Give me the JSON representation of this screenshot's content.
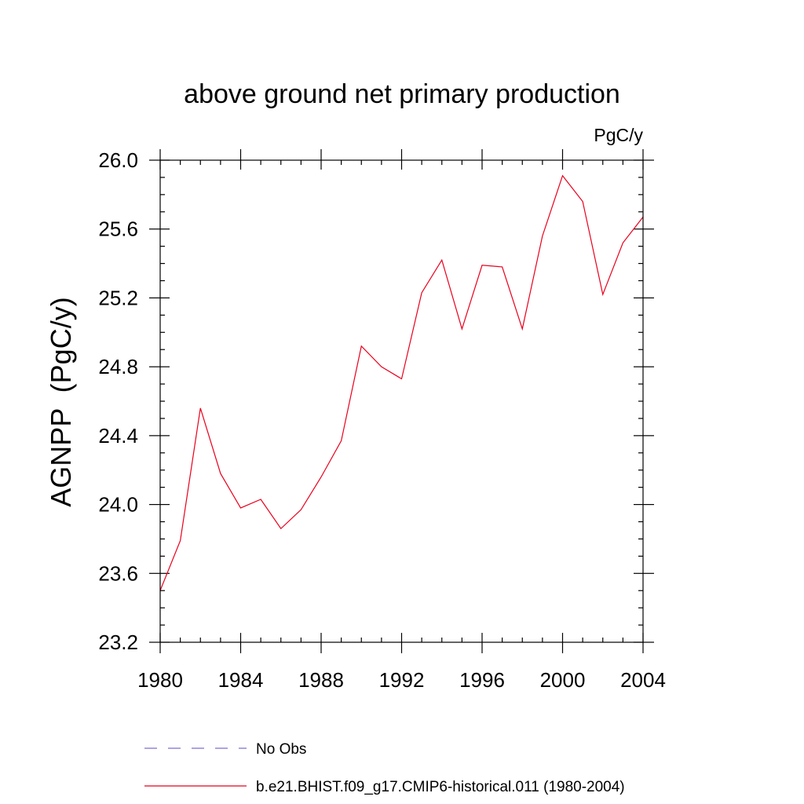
{
  "chart_data": {
    "type": "line",
    "title": "above ground net primary production",
    "units": "PgC/y",
    "ylabel": "AGNPP  (PgC/y)",
    "xlabel": "",
    "xlim": [
      1980,
      2004
    ],
    "ylim": [
      23.2,
      26.0
    ],
    "xticks": [
      1980,
      1984,
      1988,
      1992,
      1996,
      2000,
      2004
    ],
    "yticks": [
      23.2,
      23.6,
      24.0,
      24.4,
      24.8,
      25.2,
      25.6,
      26.0
    ],
    "ytick_labels": [
      "23.2",
      "23.6",
      "24.0",
      "24.4",
      "24.8",
      "25.2",
      "25.6",
      "26.0"
    ],
    "grid": false,
    "legend_position": "bottom",
    "series": [
      {
        "name": "No Obs",
        "color": "#7a6fd0",
        "style": "dashed",
        "x": [],
        "values": []
      },
      {
        "name": "b.e21.BHIST.f09_g17.CMIP6-historical.011 (1980-2004)",
        "color": "#e8001c",
        "style": "solid",
        "x": [
          1980,
          1981,
          1982,
          1983,
          1984,
          1985,
          1986,
          1987,
          1988,
          1989,
          1990,
          1991,
          1992,
          1993,
          1994,
          1995,
          1996,
          1997,
          1998,
          1999,
          2000,
          2001,
          2002,
          2003,
          2004
        ],
        "values": [
          23.5,
          23.79,
          24.56,
          24.18,
          23.98,
          24.03,
          23.86,
          23.97,
          24.16,
          24.37,
          24.92,
          24.8,
          24.73,
          25.23,
          25.42,
          25.02,
          25.39,
          25.38,
          25.02,
          25.56,
          25.91,
          25.76,
          25.22,
          25.52,
          25.67
        ]
      }
    ]
  }
}
